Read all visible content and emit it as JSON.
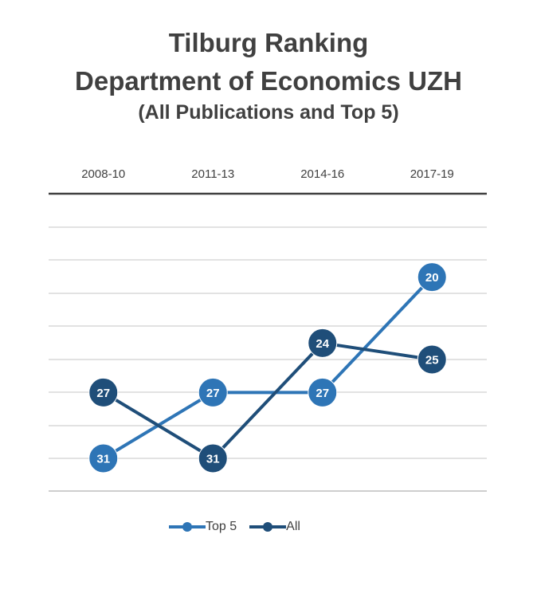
{
  "title": {
    "line1": "Tilburg Ranking",
    "line2": "Department of Economics UZH",
    "line3": "(All Publications and Top 5)"
  },
  "colors": {
    "top5": "#2e75b6",
    "all": "#1f4e79",
    "grid": "#d0d0d0",
    "axis": "#404040",
    "text": "#404040"
  },
  "chart_data": {
    "type": "line",
    "categories": [
      "2008-10",
      "2011-13",
      "2014-16",
      "2017-19"
    ],
    "series": [
      {
        "name": "Top 5",
        "values": [
          31,
          27,
          27,
          20
        ]
      },
      {
        "name": "All",
        "values": [
          27,
          31,
          24,
          25
        ]
      }
    ],
    "y_reversed": true,
    "ylim": [
      18,
      32
    ],
    "x_axis_position": "top",
    "grid": true,
    "legend": "bottom"
  }
}
